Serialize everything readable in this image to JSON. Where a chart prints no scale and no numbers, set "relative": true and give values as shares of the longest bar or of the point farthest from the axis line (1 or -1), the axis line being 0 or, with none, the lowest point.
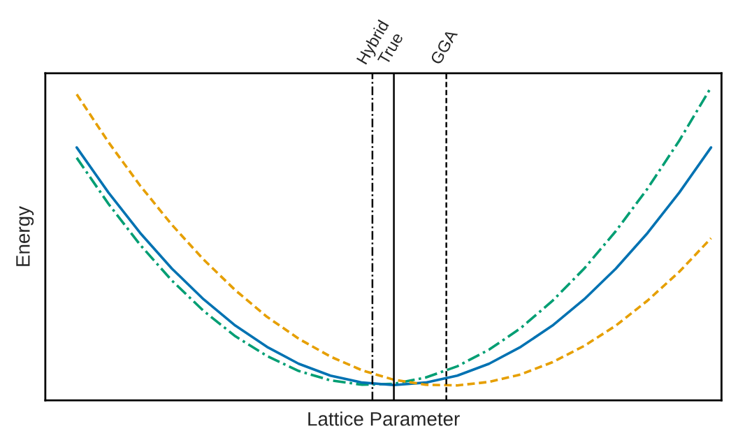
{
  "chart_data": {
    "type": "line",
    "relative": true,
    "xlabel": "Lattice Parameter",
    "ylabel": "Energy",
    "categories": [
      null,
      null,
      null,
      null,
      null,
      null,
      null,
      null,
      null,
      null,
      null,
      null,
      null,
      null,
      null,
      null,
      null,
      null,
      null,
      null,
      null
    ],
    "series": [
      {
        "color": "#009e73",
        "line_style": "dashdot",
        "values": [
          0.775,
          0.628,
          0.497,
          0.383,
          0.286,
          0.205,
          0.142,
          0.094,
          0.064,
          0.05,
          0.053,
          0.073,
          0.109,
          0.162,
          0.231,
          0.318,
          0.421,
          0.541,
          0.677,
          0.83,
          1.0
        ]
      },
      {
        "color": "#0072b2",
        "line_style": "solid",
        "values": [
          0.808,
          0.664,
          0.535,
          0.421,
          0.323,
          0.239,
          0.171,
          0.117,
          0.079,
          0.057,
          0.049,
          0.057,
          0.079,
          0.117,
          0.171,
          0.239,
          0.323,
          0.421,
          0.535,
          0.664,
          0.808
        ]
      },
      {
        "color": "#e69f00",
        "line_style": "dashed",
        "values": [
          0.978,
          0.825,
          0.686,
          0.561,
          0.45,
          0.352,
          0.267,
          0.197,
          0.14,
          0.096,
          0.066,
          0.05,
          0.048,
          0.059,
          0.083,
          0.122,
          0.174,
          0.239,
          0.319,
          0.411,
          0.518
        ]
      }
    ],
    "annotations": [
      "Hybrid",
      "True",
      "GGA"
    ],
    "grid": false,
    "legend": false
  }
}
